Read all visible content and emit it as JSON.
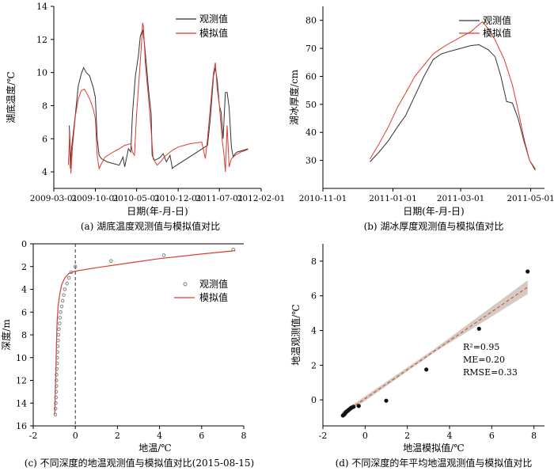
{
  "chart_data": [
    {
      "id": "a",
      "type": "line",
      "caption": "(a) 湖底温度观测值与模拟值对比",
      "xlabel": "日期(年-月-日)",
      "ylabel": "湖底温度/℃",
      "x_ticks": [
        "2009-03-01",
        "2009-10-01",
        "2010-05-01",
        "2010-12-01",
        "2011-07-01",
        "2012-02-01"
      ],
      "xlim": [
        "2009-03-01",
        "2012-02-01"
      ],
      "ylim": [
        3,
        14
      ],
      "y_ticks": [
        4,
        6,
        8,
        10,
        12,
        14
      ],
      "legend": "top-right",
      "series": [
        {
          "name": "观测值",
          "color": "#333333",
          "points": [
            [
              "2009-05-20",
              6.8
            ],
            [
              "2009-05-25",
              4.2
            ],
            [
              "2009-06-01",
              5.5
            ],
            [
              "2009-06-20",
              7.5
            ],
            [
              "2009-07-05",
              9.2
            ],
            [
              "2009-07-20",
              9.9
            ],
            [
              "2009-08-01",
              10.3
            ],
            [
              "2009-08-15",
              10.0
            ],
            [
              "2009-09-01",
              9.8
            ],
            [
              "2009-09-20",
              9.1
            ],
            [
              "2009-10-01",
              8.5
            ],
            [
              "2009-10-10",
              6.0
            ],
            [
              "2009-10-20",
              5.0
            ],
            [
              "2009-11-01",
              4.8
            ],
            [
              "2009-12-01",
              4.6
            ],
            [
              "2010-01-01",
              4.5
            ],
            [
              "2010-02-01",
              4.4
            ],
            [
              "2010-02-20",
              4.9
            ],
            [
              "2010-03-01",
              4.3
            ],
            [
              "2010-03-20",
              5.4
            ],
            [
              "2010-04-01",
              5.2
            ],
            [
              "2010-04-10",
              7.5
            ],
            [
              "2010-04-25",
              9.8
            ],
            [
              "2010-05-10",
              11.0
            ],
            [
              "2010-05-20",
              12.2
            ],
            [
              "2010-06-01",
              12.6
            ],
            [
              "2010-06-10",
              11.8
            ],
            [
              "2010-06-20",
              10.5
            ],
            [
              "2010-07-01",
              9.0
            ],
            [
              "2010-07-15",
              7.5
            ],
            [
              "2010-07-20",
              5.0
            ],
            [
              "2010-08-01",
              4.7
            ],
            [
              "2010-08-20",
              4.8
            ],
            [
              "2010-09-01",
              4.9
            ],
            [
              "2010-09-15",
              5.1
            ],
            [
              "2010-10-01",
              4.6
            ],
            [
              "2010-10-20",
              5.0
            ],
            [
              "2010-11-01",
              4.2
            ],
            [
              "2010-11-10",
              4.3
            ],
            [
              "2011-05-01",
              5.6
            ],
            [
              "2011-05-15",
              7.2
            ],
            [
              "2011-06-01",
              9.8
            ],
            [
              "2011-06-10",
              10.3
            ],
            [
              "2011-06-20",
              9.5
            ],
            [
              "2011-07-01",
              8.0
            ],
            [
              "2011-07-10",
              7.6
            ],
            [
              "2011-07-20",
              6.0
            ],
            [
              "2011-08-01",
              8.8
            ],
            [
              "2011-08-10",
              8.8
            ],
            [
              "2011-08-20",
              7.9
            ],
            [
              "2011-09-01",
              5.5
            ],
            [
              "2011-09-10",
              4.9
            ],
            [
              "2011-09-20",
              5.1
            ],
            [
              "2011-10-01",
              5.2
            ],
            [
              "2011-11-01",
              5.3
            ],
            [
              "2011-11-25",
              5.4
            ]
          ]
        },
        {
          "name": "模拟值",
          "color": "#e03a2e",
          "points": [
            [
              "2009-05-15",
              4.4
            ],
            [
              "2009-05-22",
              6.5
            ],
            [
              "2009-05-28",
              3.9
            ],
            [
              "2009-06-05",
              5.5
            ],
            [
              "2009-06-20",
              7.4
            ],
            [
              "2009-07-05",
              8.4
            ],
            [
              "2009-07-20",
              8.9
            ],
            [
              "2009-08-05",
              9.0
            ],
            [
              "2009-08-20",
              8.7
            ],
            [
              "2009-09-05",
              8.3
            ],
            [
              "2009-09-20",
              7.8
            ],
            [
              "2009-10-01",
              7.2
            ],
            [
              "2009-10-10",
              5.0
            ],
            [
              "2009-10-20",
              4.2
            ],
            [
              "2009-11-01",
              4.5
            ],
            [
              "2009-11-20",
              4.9
            ],
            [
              "2010-01-01",
              5.2
            ],
            [
              "2010-02-01",
              5.4
            ],
            [
              "2010-03-01",
              5.6
            ],
            [
              "2010-04-01",
              5.7
            ],
            [
              "2010-04-10",
              5.2
            ],
            [
              "2010-04-20",
              5.0
            ],
            [
              "2010-05-01",
              7.5
            ],
            [
              "2010-05-15",
              9.8
            ],
            [
              "2010-05-25",
              11.5
            ],
            [
              "2010-06-01",
              13.0
            ],
            [
              "2010-06-05",
              12.8
            ],
            [
              "2010-06-15",
              10.5
            ],
            [
              "2010-07-01",
              8.5
            ],
            [
              "2010-07-15",
              6.5
            ],
            [
              "2010-07-25",
              4.8
            ],
            [
              "2010-08-15",
              4.4
            ],
            [
              "2010-09-01",
              4.6
            ],
            [
              "2010-09-20",
              4.9
            ],
            [
              "2010-10-10",
              5.1
            ],
            [
              "2010-11-01",
              5.3
            ],
            [
              "2010-12-01",
              5.5
            ],
            [
              "2011-01-01",
              5.6
            ],
            [
              "2011-02-01",
              5.7
            ],
            [
              "2011-03-01",
              5.75
            ],
            [
              "2011-04-01",
              5.8
            ],
            [
              "2011-04-20",
              4.8
            ],
            [
              "2011-05-01",
              6.0
            ],
            [
              "2011-05-20",
              8.5
            ],
            [
              "2011-06-01",
              10.0
            ],
            [
              "2011-06-10",
              10.6
            ],
            [
              "2011-06-20",
              9.0
            ],
            [
              "2011-07-01",
              8.0
            ],
            [
              "2011-07-15",
              6.0
            ],
            [
              "2011-07-25",
              5.0
            ],
            [
              "2011-08-01",
              4.0
            ],
            [
              "2011-08-10",
              6.8
            ],
            [
              "2011-08-20",
              4.3
            ],
            [
              "2011-09-01",
              4.8
            ],
            [
              "2011-09-20",
              5.0
            ],
            [
              "2011-10-20",
              5.2
            ],
            [
              "2011-11-25",
              5.35
            ]
          ]
        }
      ]
    },
    {
      "id": "b",
      "type": "line",
      "caption": "(b) 湖冰厚度观测值与模拟值对比",
      "xlabel": "日期(年-月-日)",
      "ylabel": "湖冰厚度/cm",
      "x_ticks": [
        "2010-11-01",
        "2011-01-01",
        "2011-03-01",
        "2011-05-01"
      ],
      "xlim": [
        "2010-11-01",
        "2011-05-13"
      ],
      "ylim": [
        20,
        85
      ],
      "y_ticks": [
        30,
        40,
        50,
        60,
        70,
        80
      ],
      "legend": "top-right",
      "series": [
        {
          "name": "观测值",
          "color": "#333333",
          "points": [
            [
              "2010-12-12",
              29.5
            ],
            [
              "2010-12-20",
              33
            ],
            [
              "2010-12-28",
              37
            ],
            [
              "2011-01-05",
              42
            ],
            [
              "2011-01-12",
              46
            ],
            [
              "2011-01-20",
              53
            ],
            [
              "2011-01-28",
              60
            ],
            [
              "2011-02-05",
              66
            ],
            [
              "2011-02-12",
              68
            ],
            [
              "2011-02-20",
              69
            ],
            [
              "2011-03-01",
              70
            ],
            [
              "2011-03-10",
              71
            ],
            [
              "2011-03-17",
              71.3
            ],
            [
              "2011-03-25",
              69.5
            ],
            [
              "2011-03-31",
              67
            ],
            [
              "2011-04-05",
              60
            ],
            [
              "2011-04-10",
              51
            ],
            [
              "2011-04-15",
              50.5
            ],
            [
              "2011-04-20",
              45
            ],
            [
              "2011-04-25",
              37
            ],
            [
              "2011-04-30",
              30
            ],
            [
              "2011-05-05",
              26.5
            ]
          ]
        },
        {
          "name": "模拟值",
          "color": "#e03a2e",
          "points": [
            [
              "2010-12-12",
              30.5
            ],
            [
              "2010-12-20",
              36
            ],
            [
              "2010-12-28",
              42
            ],
            [
              "2011-01-05",
              49
            ],
            [
              "2011-01-12",
              54
            ],
            [
              "2011-01-20",
              60
            ],
            [
              "2011-01-28",
              64
            ],
            [
              "2011-02-05",
              68
            ],
            [
              "2011-02-12",
              70
            ],
            [
              "2011-02-20",
              72
            ],
            [
              "2011-03-01",
              74
            ],
            [
              "2011-03-10",
              76
            ],
            [
              "2011-03-17",
              78.5
            ],
            [
              "2011-03-20",
              79.5
            ],
            [
              "2011-03-25",
              77
            ],
            [
              "2011-03-31",
              73
            ],
            [
              "2011-04-08",
              66
            ],
            [
              "2011-04-15",
              57
            ],
            [
              "2011-04-20",
              48
            ],
            [
              "2011-04-25",
              38
            ],
            [
              "2011-04-30",
              30
            ],
            [
              "2011-05-05",
              27
            ]
          ]
        }
      ]
    },
    {
      "id": "c",
      "type": "scatter",
      "caption": "(c) 不同深度的地温观测值与模拟值对比(2015-08-15)",
      "xlabel": "地温/℃",
      "ylabel": "深度/m",
      "xlim": [
        -2,
        8
      ],
      "ylim": [
        16,
        0
      ],
      "x_ticks": [
        -2,
        0,
        2,
        4,
        6,
        8
      ],
      "y_ticks": [
        0,
        2,
        4,
        6,
        8,
        10,
        12,
        14,
        16
      ],
      "legend": "right",
      "reference_line_x": 0,
      "series": [
        {
          "name": "观测值",
          "color": "#777777",
          "marker": "open-circle",
          "points": [
            [
              7.5,
              0.5
            ],
            [
              4.2,
              1.0
            ],
            [
              1.7,
              1.5
            ],
            [
              0.0,
              2.0
            ],
            [
              -0.2,
              2.5
            ],
            [
              -0.3,
              3.0
            ],
            [
              -0.4,
              3.5
            ],
            [
              -0.5,
              4.0
            ],
            [
              -0.55,
              4.5
            ],
            [
              -0.6,
              5.0
            ],
            [
              -0.65,
              5.5
            ],
            [
              -0.7,
              6.0
            ],
            [
              -0.73,
              6.5
            ],
            [
              -0.75,
              7.0
            ],
            [
              -0.78,
              7.5
            ],
            [
              -0.8,
              8.0
            ],
            [
              -0.82,
              8.5
            ],
            [
              -0.84,
              9.0
            ],
            [
              -0.85,
              9.5
            ],
            [
              -0.86,
              10.0
            ],
            [
              -0.87,
              10.5
            ],
            [
              -0.88,
              11.0
            ],
            [
              -0.89,
              11.5
            ],
            [
              -0.9,
              12.0
            ],
            [
              -0.9,
              12.5
            ],
            [
              -0.91,
              13.0
            ],
            [
              -0.92,
              13.5
            ],
            [
              -0.93,
              14.0
            ],
            [
              -0.94,
              14.5
            ],
            [
              -0.95,
              15.0
            ]
          ]
        },
        {
          "name": "模拟值",
          "color": "#e03a2e",
          "marker": "line",
          "points": [
            [
              7.6,
              0.6
            ],
            [
              6.0,
              0.9
            ],
            [
              4.0,
              1.3
            ],
            [
              2.5,
              1.7
            ],
            [
              1.0,
              2.1
            ],
            [
              0.0,
              2.4
            ],
            [
              -0.3,
              2.6
            ],
            [
              -0.5,
              3.0
            ],
            [
              -0.65,
              3.6
            ],
            [
              -0.75,
              4.5
            ],
            [
              -0.82,
              5.5
            ],
            [
              -0.87,
              7.0
            ],
            [
              -0.9,
              9.0
            ],
            [
              -0.92,
              11.0
            ],
            [
              -0.95,
              13.0
            ],
            [
              -0.98,
              15.0
            ]
          ]
        }
      ]
    },
    {
      "id": "d",
      "type": "scatter",
      "caption": "(d) 不同深度的年平均地温观测值与模拟值对比",
      "xlabel": "地温模拟值/℃",
      "ylabel": "地温观测值/℃",
      "xlim": [
        -2,
        8.5
      ],
      "ylim": [
        -1.5,
        9
      ],
      "x_ticks": [
        -2,
        0,
        2,
        4,
        6,
        8
      ],
      "y_ticks": [
        0,
        2,
        4,
        6,
        8
      ],
      "stats": {
        "r2": "R²=0.95",
        "me": "ME=0.20",
        "rmse": "RMSE=0.33"
      },
      "fit_line": {
        "x": [
          -1.1,
          7.7
        ],
        "y": [
          -0.85,
          6.5
        ]
      },
      "confidence_band": {
        "x": [
          -1.1,
          3.3,
          7.7
        ],
        "y_lower": [
          -1.0,
          2.75,
          6.1
        ],
        "y_upper": [
          -0.7,
          2.95,
          6.9
        ]
      },
      "points": [
        [
          7.7,
          7.4
        ],
        [
          5.4,
          4.1
        ],
        [
          2.9,
          1.75
        ],
        [
          1.0,
          -0.05
        ],
        [
          -0.3,
          -0.35
        ],
        [
          -0.55,
          -0.4
        ],
        [
          -0.65,
          -0.45
        ],
        [
          -0.7,
          -0.5
        ],
        [
          -0.75,
          -0.55
        ],
        [
          -0.8,
          -0.6
        ],
        [
          -0.85,
          -0.65
        ],
        [
          -0.9,
          -0.7
        ],
        [
          -0.93,
          -0.75
        ],
        [
          -0.96,
          -0.8
        ],
        [
          -1.0,
          -0.85
        ],
        [
          -1.05,
          -0.9
        ]
      ]
    }
  ]
}
